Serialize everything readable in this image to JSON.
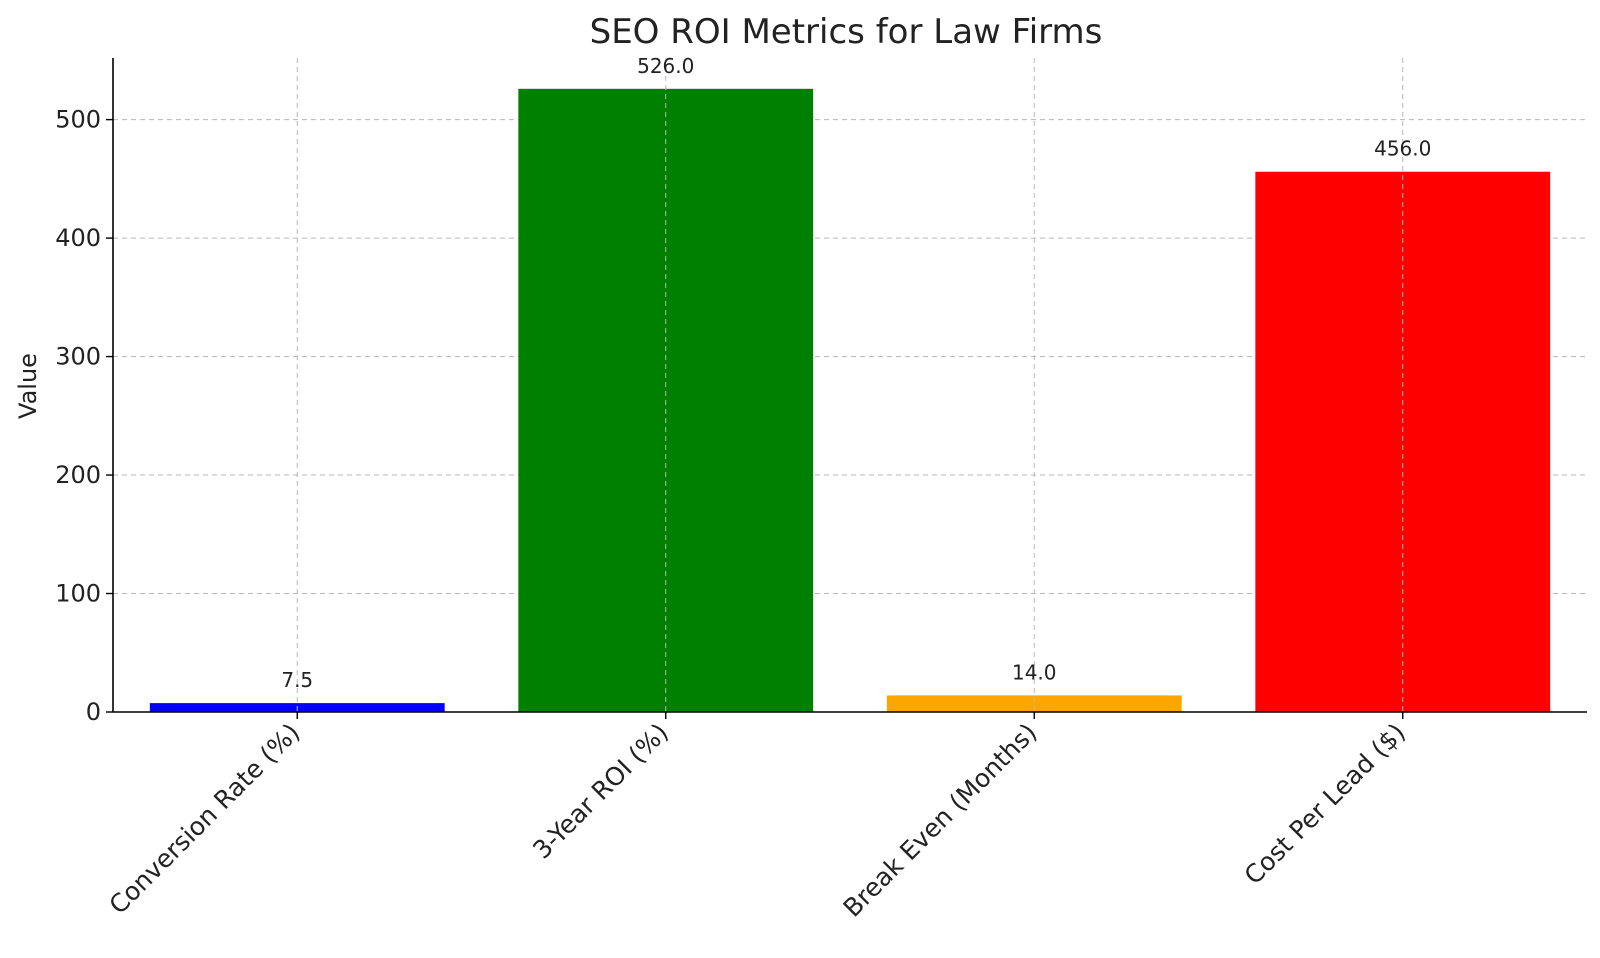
{
  "chart_data": {
    "type": "bar",
    "title": "SEO ROI Metrics for Law Firms",
    "xlabel": "",
    "ylabel": "Value",
    "categories": [
      "Conversion Rate (%)",
      "3-Year ROI (%)",
      "Break Even (Months)",
      "Cost Per Lead ($)"
    ],
    "values": [
      7.5,
      526.0,
      14.0,
      456.0
    ],
    "value_labels": [
      "7.5",
      "526.0",
      "14.0",
      "456.0"
    ],
    "colors": [
      "#0000ff",
      "#008000",
      "#ffa500",
      "#ff0000"
    ],
    "ylim": [
      0,
      552
    ],
    "yticks": [
      0,
      100,
      200,
      300,
      400,
      500
    ],
    "grid": true,
    "legend": "none"
  }
}
